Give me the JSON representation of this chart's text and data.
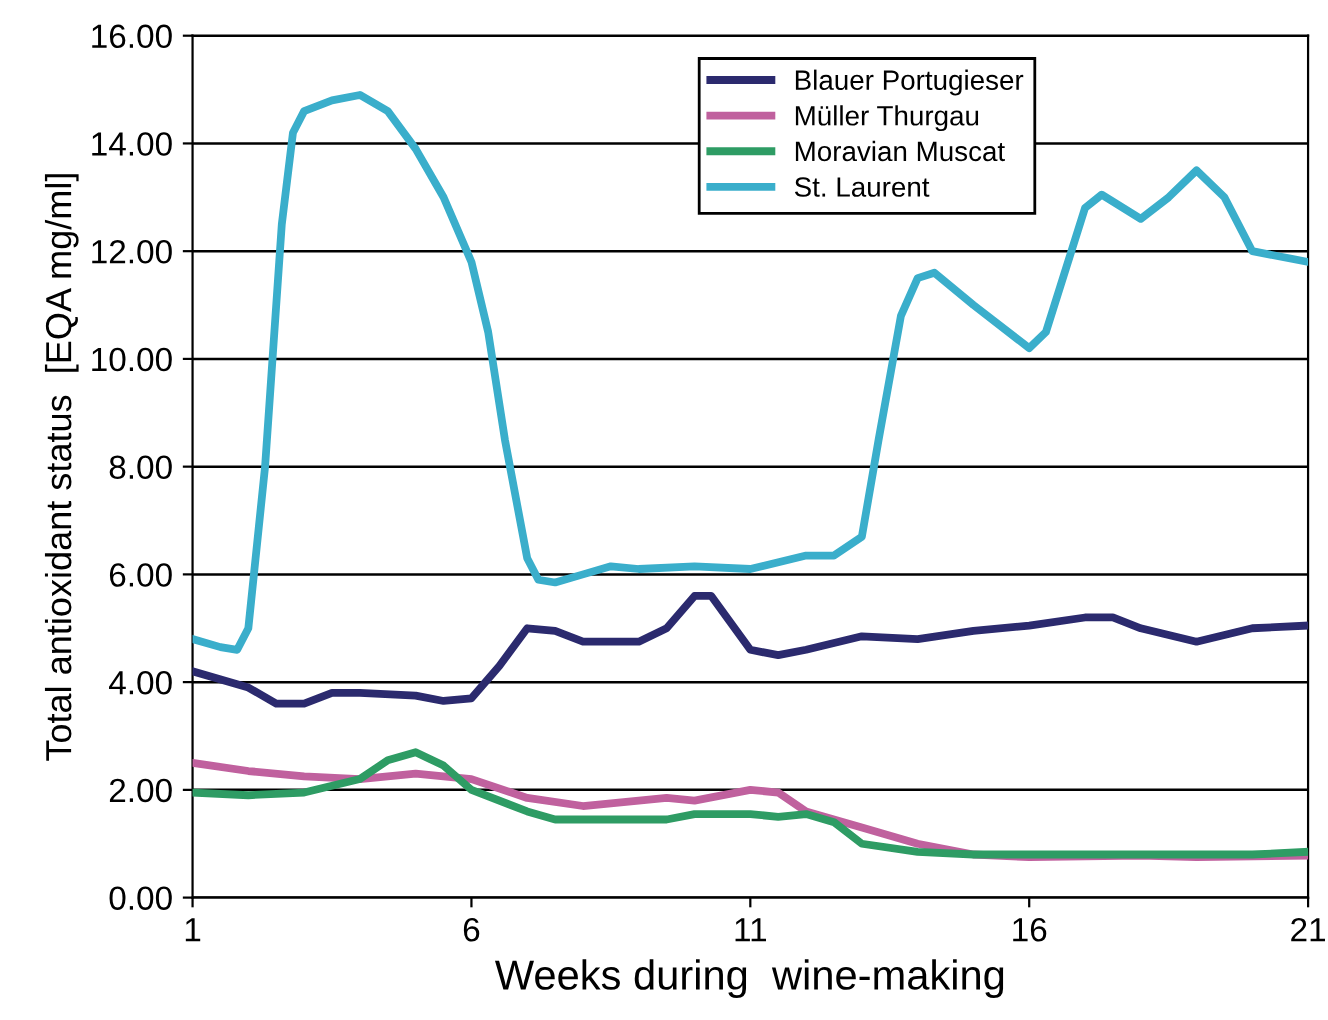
{
  "chart_data": {
    "type": "line",
    "xlabel": "Weeks during  wine-making",
    "ylabel": "Total antioxidant status  [EQA mg/ml]",
    "xlim": [
      1,
      21
    ],
    "xticks": [
      1,
      6,
      11,
      16,
      21
    ],
    "ylim": [
      0,
      16
    ],
    "yticks": [
      {
        "value": 0,
        "label": "0.00"
      },
      {
        "value": 2,
        "label": "2.00"
      },
      {
        "value": 4,
        "label": "4.00"
      },
      {
        "value": 6,
        "label": "6.00"
      },
      {
        "value": 8,
        "label": "8.00"
      },
      {
        "value": 10,
        "label": "10.00"
      },
      {
        "value": 12,
        "label": "12.00"
      },
      {
        "value": 14,
        "label": "14.00"
      },
      {
        "value": 16,
        "label": "16.00"
      }
    ],
    "grid": "y",
    "legend": "top right",
    "marker": "none",
    "line_style": "solid",
    "series": [
      {
        "name": "Blauer Portugieser",
        "color": "#2b2a6e",
        "x": [
          1,
          2,
          2.5,
          3,
          3.5,
          4,
          5,
          5.5,
          6,
          6.5,
          7,
          7.5,
          8,
          9,
          9.5,
          10,
          10.3,
          11,
          11.5,
          12,
          13,
          14,
          15,
          16,
          17,
          17.5,
          18,
          19,
          20,
          21
        ],
        "values": [
          4.2,
          3.9,
          3.6,
          3.6,
          3.8,
          3.8,
          3.75,
          3.65,
          3.7,
          4.3,
          5.0,
          4.95,
          4.75,
          4.75,
          5.0,
          5.6,
          5.6,
          4.6,
          4.5,
          4.6,
          4.85,
          4.8,
          4.95,
          5.05,
          5.2,
          5.2,
          5.0,
          4.75,
          5.0,
          5.05
        ]
      },
      {
        "name": "Müller Thurgau",
        "color": "#c0619e",
        "x": [
          1,
          2,
          3,
          4,
          5,
          6,
          7,
          8,
          9,
          9.5,
          10,
          11,
          11.5,
          12,
          13,
          14,
          15,
          16,
          18,
          19,
          21
        ],
        "values": [
          2.5,
          2.35,
          2.25,
          2.2,
          2.3,
          2.2,
          1.85,
          1.7,
          1.8,
          1.85,
          1.8,
          2.0,
          1.95,
          1.6,
          1.3,
          1.0,
          0.8,
          0.75,
          0.78,
          0.75,
          0.78
        ]
      },
      {
        "name": "Moravian Muscat",
        "color": "#2e9c64",
        "x": [
          1,
          2,
          3,
          4,
          4.5,
          5,
          5.5,
          6,
          7,
          7.5,
          9,
          9.5,
          10,
          11,
          11.5,
          12,
          12.5,
          13,
          14,
          15,
          17,
          20,
          21
        ],
        "values": [
          1.95,
          1.9,
          1.95,
          2.2,
          2.55,
          2.7,
          2.45,
          2.0,
          1.6,
          1.45,
          1.45,
          1.45,
          1.55,
          1.55,
          1.5,
          1.55,
          1.4,
          1.0,
          0.85,
          0.8,
          0.8,
          0.8,
          0.85
        ]
      },
      {
        "name": "St. Laurent",
        "color": "#3aaecb",
        "x": [
          1,
          1.5,
          1.8,
          2,
          2.3,
          2.6,
          2.8,
          3,
          3.5,
          4,
          4.5,
          5,
          5.5,
          6,
          6.3,
          6.6,
          7,
          7.2,
          7.5,
          8,
          8.5,
          9,
          10,
          11,
          12,
          12.5,
          13,
          13.3,
          13.7,
          14,
          14.3,
          15,
          16,
          16.3,
          17,
          17.3,
          18,
          18.5,
          19,
          19.5,
          20,
          21
        ],
        "values": [
          4.8,
          4.65,
          4.6,
          5.0,
          8.0,
          12.5,
          14.2,
          14.6,
          14.8,
          14.9,
          14.6,
          13.9,
          13.0,
          11.8,
          10.5,
          8.5,
          6.3,
          5.9,
          5.85,
          6.0,
          6.15,
          6.1,
          6.15,
          6.1,
          6.35,
          6.35,
          6.7,
          8.5,
          10.8,
          11.5,
          11.6,
          11.0,
          10.2,
          10.5,
          12.8,
          13.05,
          12.6,
          13.0,
          13.5,
          13.0,
          12.0,
          11.8
        ]
      }
    ]
  }
}
